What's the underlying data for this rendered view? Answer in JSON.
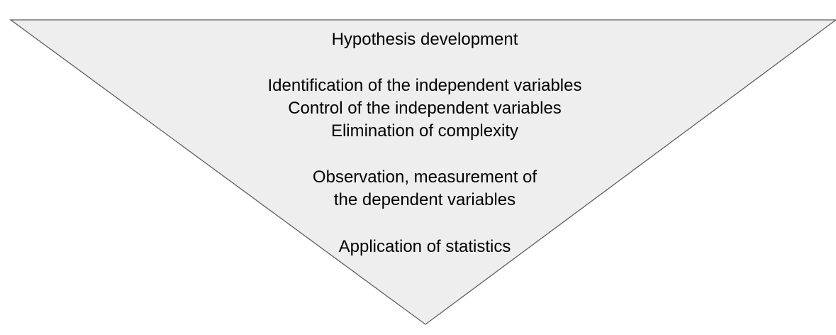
{
  "diagram": {
    "shape": "inverted-triangle",
    "fill_color": "#eeeeee",
    "stroke_color": "#5f5f5f",
    "stages": [
      {
        "lines": [
          "Hypothesis development"
        ]
      },
      {
        "lines": [
          "Identification of the independent variables",
          "Control of the independent variables",
          "Elimination of complexity"
        ]
      },
      {
        "lines": [
          "Observation, measurement of",
          "the dependent variables"
        ]
      },
      {
        "lines": [
          "Application of statistics"
        ]
      }
    ]
  }
}
